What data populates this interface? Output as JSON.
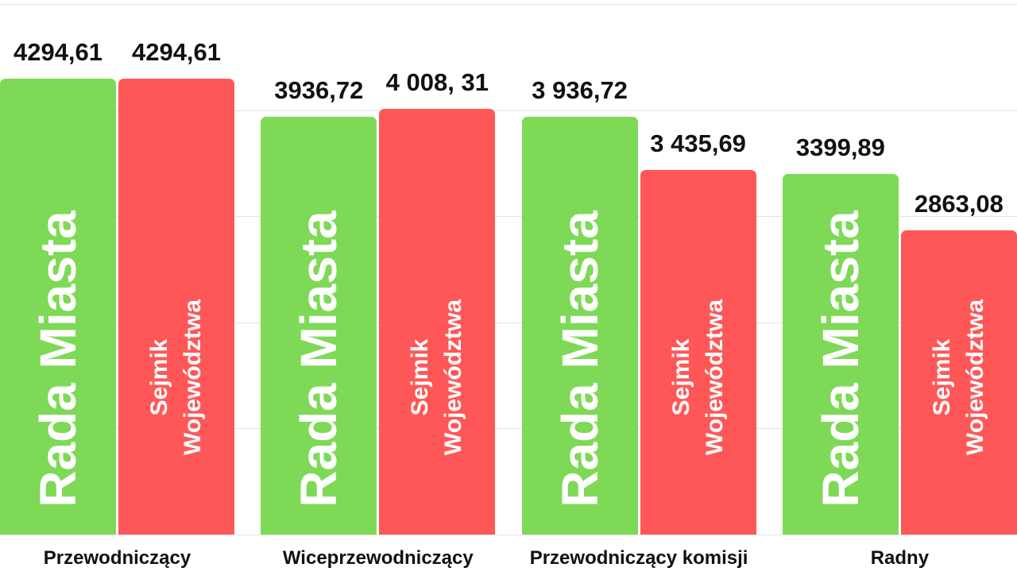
{
  "chart_data": {
    "type": "bar",
    "categories": [
      "Przewodniczący",
      "Wiceprzewodniczący",
      "Przewodniczący komisji",
      "Radny"
    ],
    "series": [
      {
        "name": "Rada Miasta",
        "color": "#7ed957",
        "values": [
          4294.61,
          3936.72,
          3936.72,
          3399.89
        ],
        "value_labels": [
          "4294,61",
          "3936,72",
          "3 936,72",
          "3399,89"
        ]
      },
      {
        "name": "Sejmik Województwa",
        "color": "#ff5757",
        "values": [
          4294.61,
          4008.31,
          3435.69,
          2863.08
        ],
        "value_labels": [
          "4294,61",
          "4 008, 31",
          "3 435,69",
          "2863,08"
        ]
      }
    ],
    "ylim": [
      0,
      5000
    ],
    "yticks": [
      0,
      1000,
      2000,
      3000,
      4000,
      5000
    ],
    "grid": true
  }
}
